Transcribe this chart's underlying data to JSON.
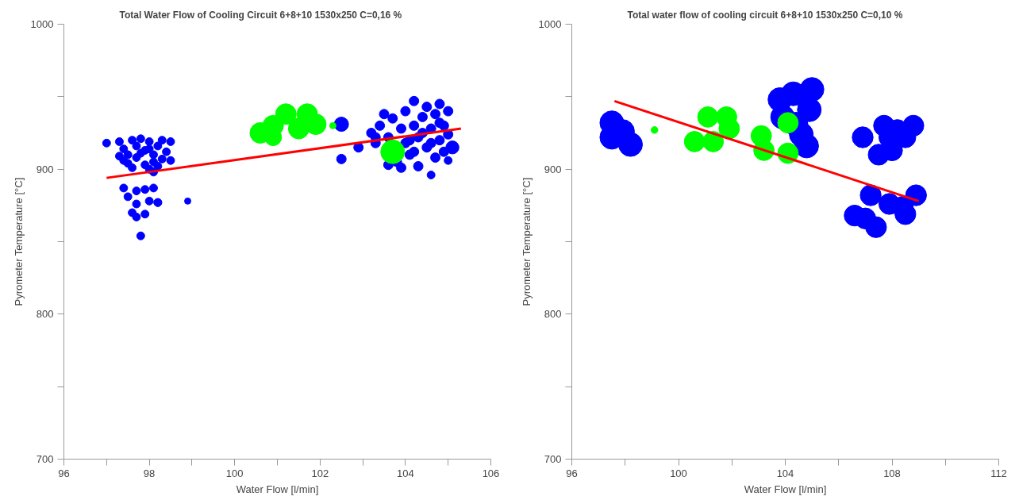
{
  "chart_data": [
    {
      "type": "bubble",
      "title": "Total Water Flow of Cooling Circuit 6+8+10  1530x250 C=0,16 %",
      "xlabel": "Water Flow [l/min]",
      "ylabel": "Pyrometer Temperature [°C]",
      "xlim": [
        96,
        106
      ],
      "ylim": [
        700,
        1000
      ],
      "xticks": [
        96,
        {
          "value": 97,
          "label": null
        },
        98,
        {
          "value": 99,
          "label": null
        },
        100,
        {
          "value": 101,
          "label": null
        },
        102,
        {
          "value": 103,
          "label": null
        },
        104,
        {
          "value": 105,
          "label": null
        },
        106
      ],
      "yticks": [
        700,
        {
          "value": 750,
          "label": null
        },
        800,
        {
          "value": 850,
          "label": null
        },
        900,
        {
          "value": 950,
          "label": null
        },
        1000
      ],
      "grid": false,
      "series": [
        {
          "color": "#0000ff",
          "x": [
            97.0,
            97.3,
            97.4,
            97.5,
            97.6,
            97.7,
            97.8,
            97.9,
            98.0,
            98.1,
            98.2,
            98.3,
            98.4,
            98.5,
            97.5,
            97.7,
            97.9,
            98.1,
            98.3,
            97.4,
            97.6,
            98.0,
            98.2,
            98.5,
            98.1,
            97.8,
            98.0,
            97.3,
            97.4,
            97.5,
            97.7,
            97.9,
            98.1,
            98.2,
            98.2,
            98.0,
            97.7,
            97.6,
            97.7,
            97.9,
            97.8,
            98.9,
            102.5,
            102.5,
            102.9,
            103.2,
            103.3,
            103.4,
            103.5,
            103.6,
            103.7,
            103.8,
            103.9,
            104.0,
            104.0,
            104.1,
            104.2,
            104.2,
            104.3,
            104.3,
            104.4,
            104.5,
            104.5,
            104.6,
            104.6,
            104.7,
            104.7,
            104.8,
            104.8,
            104.9,
            104.9,
            105.0,
            105.0,
            105.1,
            103.6,
            103.9,
            104.2,
            103.3,
            103.5,
            104.4,
            104.1,
            104.6,
            104.8,
            105.0
          ],
          "values": [
            918,
            919,
            914,
            910,
            920,
            916,
            921,
            913,
            919,
            910,
            916,
            920,
            912,
            919,
            904,
            908,
            903,
            905,
            907,
            906,
            901,
            900,
            902,
            906,
            898,
            911,
            914,
            909,
            887,
            881,
            885,
            886,
            887,
            877,
            877,
            878,
            876,
            870,
            867,
            869,
            854,
            878,
            931,
            907,
            915,
            925,
            918,
            930,
            null,
            922,
            935,
            905,
            928,
            918,
            940,
            910,
            930,
            947,
            902,
            922,
            936,
            915,
            943,
            928,
            896,
            908,
            938,
            920,
            945,
            912,
            930,
            940,
            924,
            915,
            903,
            901,
            912,
            922,
            938,
            925,
            920,
            918,
            932,
            906
          ],
          "sizes": [
            0.11,
            0.11,
            0.11,
            0.11,
            0.11,
            0.11,
            0.11,
            0.11,
            0.11,
            0.11,
            0.11,
            0.11,
            0.11,
            0.11,
            0.11,
            0.11,
            0.11,
            0.11,
            0.11,
            0.11,
            0.11,
            0.11,
            0.11,
            0.11,
            0.11,
            0.11,
            0.11,
            0.11,
            0.11,
            0.11,
            0.11,
            0.11,
            0.11,
            0.11,
            0.11,
            0.11,
            0.11,
            0.11,
            0.11,
            0.11,
            0.11,
            0.07,
            0.36,
            0.16,
            0.16,
            0.16,
            0.16,
            0.16,
            null,
            0.16,
            0.16,
            0.16,
            0.16,
            0.16,
            0.16,
            0.16,
            0.16,
            0.16,
            0.16,
            0.16,
            0.16,
            0.16,
            0.16,
            0.16,
            0.11,
            0.16,
            0.16,
            0.16,
            0.16,
            0.16,
            0.16,
            0.16,
            0.16,
            0.3,
            0.16,
            0.16,
            0.16,
            0.16,
            0.16,
            0.16,
            0.16,
            0.16,
            0.16,
            0.11
          ]
        },
        {
          "color": "#00ff00",
          "x": [
            100.6,
            100.9,
            101.2,
            101.5,
            101.7,
            101.9,
            100.9,
            102.3,
            103.7
          ],
          "values": [
            925,
            930,
            938,
            928,
            938,
            931,
            922,
            930,
            912
          ],
          "sizes": [
            0.75,
            0.75,
            0.75,
            0.75,
            0.75,
            0.75,
            0.5,
            0.07,
            1
          ]
        },
        {
          "type": "line",
          "color": "#ff0000",
          "x": [
            97.0,
            105.3
          ],
          "values": [
            894,
            928
          ]
        }
      ]
    },
    {
      "type": "bubble",
      "title": "Total water flow of cooling circuit 6+8+10  1530x250 C=0,10 %",
      "xlabel": "Water Flow [l/min]",
      "ylabel": "Pyrometer Temperature [°C]",
      "xlim": [
        96,
        112
      ],
      "ylim": [
        700,
        1000
      ],
      "xticks": [
        96,
        {
          "value": 98,
          "label": null
        },
        100,
        {
          "value": 102,
          "label": null
        },
        104,
        {
          "value": 106,
          "label": null
        },
        108,
        {
          "value": 110,
          "label": null
        },
        112
      ],
      "yticks": [
        700,
        {
          "value": 750,
          "label": null
        },
        800,
        {
          "value": 850,
          "label": null
        },
        900,
        {
          "value": 950,
          "label": null
        },
        1000
      ],
      "grid": false,
      "series": [
        {
          "color": "#0000ff",
          "x": [
            97.5,
            97.5,
            98.2,
            97.9,
            104.3,
            104.9,
            103.9,
            104.6,
            105.0,
            104.8,
            103.8,
            104.4,
            106.9,
            107.7,
            108.2,
            108.8,
            107.5,
            108.0,
            108.5,
            107.9,
            106.6,
            107.2,
            107.4,
            107.9,
            108.4,
            108.9,
            108.5,
            107.0
          ],
          "values": [
            932,
            922,
            917,
            926,
            952,
            941,
            936,
            924,
            955,
            916,
            948,
            931,
            922,
            930,
            927,
            930,
            910,
            913,
            922,
            922,
            868,
            882,
            860,
            876,
            874,
            882,
            869,
            866
          ],
          "sizes": [
            1,
            1,
            1,
            1,
            1,
            1,
            1,
            1,
            1,
            1,
            1,
            1,
            0.77,
            0.77,
            0.77,
            0.77,
            0.77,
            0.77,
            0.77,
            0.77,
            0.77,
            0.77,
            0.77,
            0.77,
            0.77,
            0.77,
            0.77,
            0.77
          ]
        },
        {
          "color": "#00ff00",
          "x": [
            99.1,
            101.1,
            101.8,
            100.6,
            101.3,
            101.9,
            103.1,
            103.2,
            104.1,
            104.1
          ],
          "values": [
            927,
            936,
            936,
            919,
            919,
            928,
            923,
            913,
            932,
            911
          ],
          "sizes": [
            0.08,
            0.74,
            0.74,
            0.74,
            0.74,
            0.74,
            0.74,
            0.74,
            0.74,
            0.74
          ]
        },
        {
          "type": "line",
          "color": "#ff0000",
          "x": [
            97.6,
            109.0
          ],
          "values": [
            947,
            878
          ]
        }
      ]
    }
  ]
}
